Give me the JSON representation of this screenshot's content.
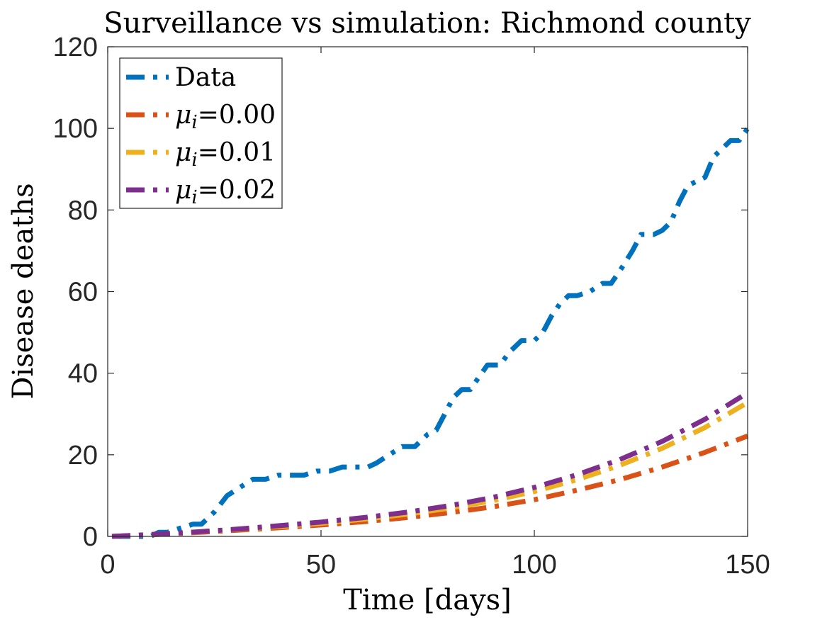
{
  "chart_data": {
    "type": "line",
    "title": "Surveillance vs simulation: Richmond county",
    "xlabel": "Time [days]",
    "ylabel": "Disease deaths",
    "xlim": [
      0,
      150
    ],
    "ylim": [
      0,
      120
    ],
    "xticks": [
      0,
      50,
      100,
      150
    ],
    "yticks": [
      0,
      20,
      40,
      60,
      80,
      100,
      120
    ],
    "xtick_labels": [
      "0",
      "50",
      "100",
      "150"
    ],
    "ytick_labels": [
      "0",
      "20",
      "40",
      "60",
      "80",
      "100",
      "120"
    ],
    "grid": false,
    "legend_position": "top-left",
    "series": [
      {
        "name": "Data",
        "legend_symbol": "",
        "legend_subscript": "",
        "legend_value": "Data",
        "color": "#0072BD",
        "style": "dash-dot",
        "x": [
          1,
          10,
          12,
          14,
          20,
          22,
          25,
          28,
          31,
          34,
          37,
          40,
          43,
          46,
          49,
          52,
          55,
          58,
          61,
          63,
          66,
          69,
          72,
          75,
          77,
          79,
          81,
          83,
          85,
          87,
          89,
          92,
          94,
          97,
          100,
          102,
          104,
          106,
          108,
          110,
          113,
          116,
          118,
          120,
          123,
          125,
          128,
          130,
          132,
          134,
          136,
          138,
          140,
          142,
          144,
          146,
          148,
          150
        ],
        "y": [
          0,
          0,
          1,
          1,
          3,
          3,
          6,
          10,
          12,
          14,
          14,
          15,
          15,
          15,
          16,
          16,
          17,
          17,
          17,
          18,
          20,
          22,
          22,
          25,
          26,
          30,
          34,
          36,
          36,
          39,
          42,
          42,
          45,
          48,
          48,
          50,
          54,
          57,
          59,
          59,
          60,
          62,
          62,
          65,
          70,
          74,
          74,
          75,
          77,
          82,
          86,
          87,
          88,
          93,
          95,
          97,
          97,
          100
        ]
      },
      {
        "name": "mu_i=0.00",
        "legend_symbol": "μ",
        "legend_subscript": "i",
        "legend_value": "=0.00",
        "color": "#D95319",
        "style": "dash-dot",
        "x": [
          1,
          10,
          20,
          30,
          40,
          50,
          60,
          70,
          80,
          90,
          100,
          110,
          120,
          130,
          140,
          150
        ],
        "y": [
          0,
          0.4,
          0.9,
          1.5,
          2.1,
          2.8,
          3.6,
          4.6,
          5.8,
          7.2,
          9.0,
          11.3,
          13.9,
          17.0,
          20.6,
          24.6
        ]
      },
      {
        "name": "mu_i=0.01",
        "legend_symbol": "μ",
        "legend_subscript": "i",
        "legend_value": "=0.01",
        "color": "#EDB120",
        "style": "dash-dot",
        "x": [
          1,
          10,
          20,
          30,
          40,
          50,
          60,
          70,
          80,
          90,
          100,
          110,
          120,
          130,
          140,
          150
        ],
        "y": [
          0,
          0.4,
          1.0,
          1.7,
          2.4,
          3.2,
          4.2,
          5.4,
          6.9,
          8.7,
          11.0,
          13.9,
          17.4,
          21.6,
          26.7,
          32.8
        ]
      },
      {
        "name": "mu_i=0.02",
        "legend_symbol": "μ",
        "legend_subscript": "i",
        "legend_value": "=0.02",
        "color": "#7E2F8E",
        "style": "dash-dot",
        "x": [
          1,
          10,
          20,
          30,
          40,
          50,
          60,
          70,
          80,
          90,
          100,
          110,
          120,
          130,
          140,
          150
        ],
        "y": [
          0,
          0.45,
          1.05,
          1.75,
          2.6,
          3.5,
          4.6,
          5.9,
          7.5,
          9.5,
          12.0,
          15.1,
          18.8,
          23.3,
          28.7,
          35.2
        ]
      }
    ]
  }
}
